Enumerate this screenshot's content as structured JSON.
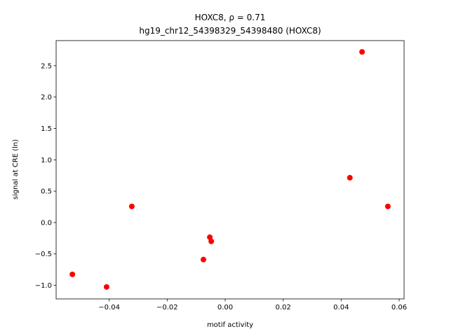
{
  "chart_data": {
    "type": "scatter",
    "title": "HOXC8, ρ = 0.71",
    "subtitle": "hg19_chr12_54398329_54398480 (HOXC8)",
    "x_label": "motif activity",
    "y_label": "signal at CRE (ln)",
    "color": "#ff0000",
    "x": [
      -0.0527,
      -0.0409,
      -0.0322,
      -0.0075,
      -0.0053,
      -0.0048,
      0.043,
      0.0472,
      0.0561
    ],
    "values": [
      -0.826,
      -1.027,
      0.257,
      -0.59,
      -0.234,
      -0.3,
      0.714,
      2.72,
      0.257
    ],
    "xlim": [
      -0.0583,
      0.0617
    ],
    "ylim": [
      -1.217,
      2.9
    ],
    "xticks": [
      {
        "value": -0.04,
        "label": "−0.04"
      },
      {
        "value": -0.02,
        "label": "−0.02"
      },
      {
        "value": 0,
        "label": "0.00"
      },
      {
        "value": 0.02,
        "label": "0.02"
      },
      {
        "value": 0.04,
        "label": "0.04"
      },
      {
        "value": 0.06,
        "label": "0.06"
      }
    ],
    "yticks": [
      {
        "value": -1,
        "label": "−1.0"
      },
      {
        "value": -0.5,
        "label": "−0.5"
      },
      {
        "value": 0,
        "label": "0.0"
      },
      0.5,
      {
        "value": 1,
        "label": "1.0"
      },
      1.5,
      {
        "value": 2,
        "label": "2.0"
      },
      2.5
    ],
    "grid": false
  }
}
